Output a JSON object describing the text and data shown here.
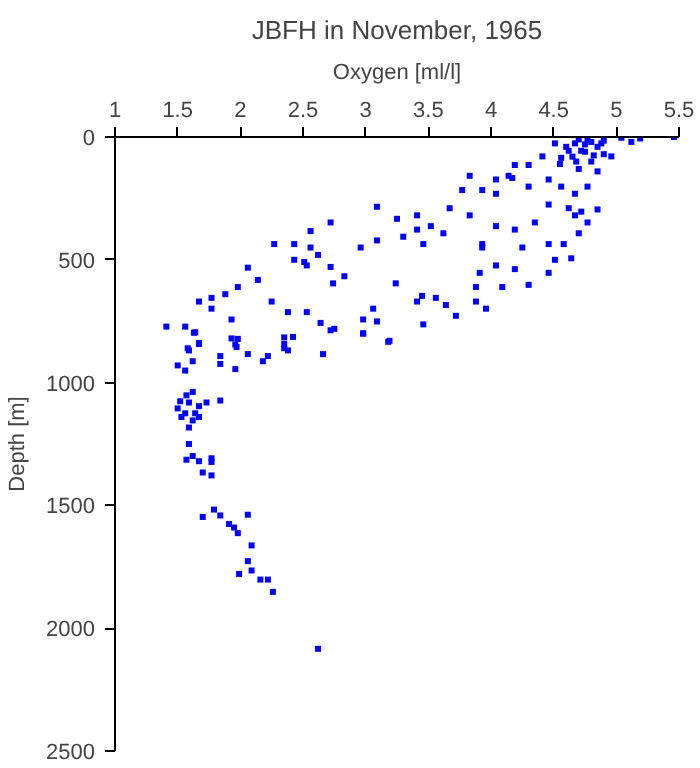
{
  "chart_data": {
    "type": "scatter",
    "title": "JBFH in November, 1965",
    "xlabel": "Oxygen [ml/l]",
    "ylabel": "Depth [m]",
    "xlim": [
      1,
      5.5
    ],
    "xticks": [
      1,
      1.5,
      2,
      2.5,
      3,
      3.5,
      4,
      4.5,
      5,
      5.5
    ],
    "ylim": [
      2500,
      0
    ],
    "yticks": [
      0,
      500,
      1000,
      1500,
      2000,
      2500
    ],
    "grid": false,
    "marker": "square",
    "series": [
      {
        "color": "#0000ff",
        "x": [
          5.46,
          5.19,
          5.12,
          5.04,
          4.96,
          4.88,
          4.77,
          4.72,
          4.67,
          4.62,
          4.56,
          4.51,
          4.41,
          4.3,
          4.19,
          4.14,
          4.04,
          3.83,
          3.77,
          3.93,
          4.04,
          4.17,
          4.3,
          4.46,
          4.56,
          4.67,
          4.77,
          4.72,
          4.85,
          4.62,
          4.46,
          4.35,
          4.19,
          4.04,
          3.93,
          3.83,
          3.67,
          3.62,
          3.46,
          3.41,
          3.25,
          3.09,
          3.41,
          3.3,
          3.52,
          3.09,
          2.96,
          2.72,
          2.56,
          2.51,
          2.43,
          2.27,
          2.56,
          2.62,
          2.72,
          2.83,
          2.74,
          2.53,
          2.43,
          2.06,
          2.14,
          1.98,
          1.88,
          1.77,
          1.67,
          1.77,
          2.25,
          2.38,
          2.53,
          2.64,
          2.72,
          2.98,
          3.06,
          3.09,
          2.98,
          3.19,
          3.24,
          3.41,
          3.45,
          3.56,
          3.64,
          3.72,
          3.88,
          3.96,
          4.09,
          4.3,
          3.91,
          4.04,
          4.19,
          3.93,
          4.25,
          4.46,
          4.46,
          4.51,
          4.64,
          4.58,
          4.7,
          4.77,
          4.67,
          3.88,
          1.41,
          1.56,
          1.64,
          1.58,
          1.67,
          1.93,
          1.98,
          1.96,
          2.35,
          2.35,
          2.75,
          3.46,
          1.63,
          1.67,
          1.59,
          1.62,
          1.5,
          1.56,
          1.84,
          1.84,
          1.96,
          1.93,
          1.97,
          2.06,
          2.18,
          2.22,
          2.35,
          2.38,
          2.42,
          2.66,
          2.98,
          3.18,
          1.62,
          1.57,
          1.52,
          1.5,
          1.59,
          1.67,
          1.73,
          1.84,
          1.53,
          1.56,
          1.64,
          1.67,
          1.62,
          1.59,
          1.59,
          1.62,
          1.57,
          1.67,
          1.77,
          1.77,
          1.7,
          1.77,
          1.79,
          1.84,
          1.7,
          1.91,
          1.95,
          1.98,
          2.06,
          2.09,
          2.06,
          2.09,
          1.99,
          2.16,
          2.22,
          2.26,
          2.62,
          4.7,
          4.8,
          4.85,
          4.75,
          4.9,
          4.65,
          4.8,
          4.7,
          4.85,
          4.75,
          4.6,
          4.9,
          4.68,
          4.82,
          4.55
        ],
        "values": [
          0,
          6,
          20,
          3,
          79,
          26,
          12,
          56,
          26,
          56,
          85,
          26,
          79,
          114,
          114,
          158,
          173,
          158,
          216,
          216,
          231,
          167,
          202,
          173,
          202,
          231,
          202,
          304,
          295,
          290,
          275,
          348,
          377,
          363,
          436,
          319,
          290,
          392,
          436,
          377,
          333,
          284,
          319,
          406,
          363,
          421,
          450,
          348,
          383,
          509,
          436,
          436,
          450,
          480,
          529,
          567,
          596,
          523,
          500,
          532,
          582,
          611,
          640,
          655,
          670,
          699,
          670,
          713,
          713,
          757,
          787,
          743,
          699,
          751,
          801,
          830,
          596,
          670,
          647,
          655,
          684,
          728,
          670,
          699,
          611,
          602,
          553,
          523,
          538,
          450,
          450,
          436,
          553,
          500,
          494,
          436,
          392,
          348,
          319,
          611,
          772,
          772,
          795,
          860,
          839,
          743,
          822,
          845,
          816,
          860,
          781,
          763,
          797,
          843,
          869,
          913,
          930,
          951,
          892,
          924,
          945,
          820,
          855,
          884,
          913,
          892,
          843,
          869,
          814,
          884,
          799,
          834,
          1038,
          1052,
          1076,
          1105,
          1081,
          1096,
          1081,
          1073,
          1140,
          1125,
          1125,
          1140,
          1154,
          1183,
          1250,
          1299,
          1314,
          1320,
          1308,
          1323,
          1366,
          1378,
          1517,
          1541,
          1547,
          1576,
          1590,
          1613,
          1538,
          1663,
          1727,
          1765,
          1779,
          1802,
          1802,
          1852,
          2084,
          10,
          20,
          40,
          60,
          70,
          80,
          100,
          130,
          140,
          30,
          40,
          15,
          100,
          75,
          110
        ]
      }
    ]
  }
}
